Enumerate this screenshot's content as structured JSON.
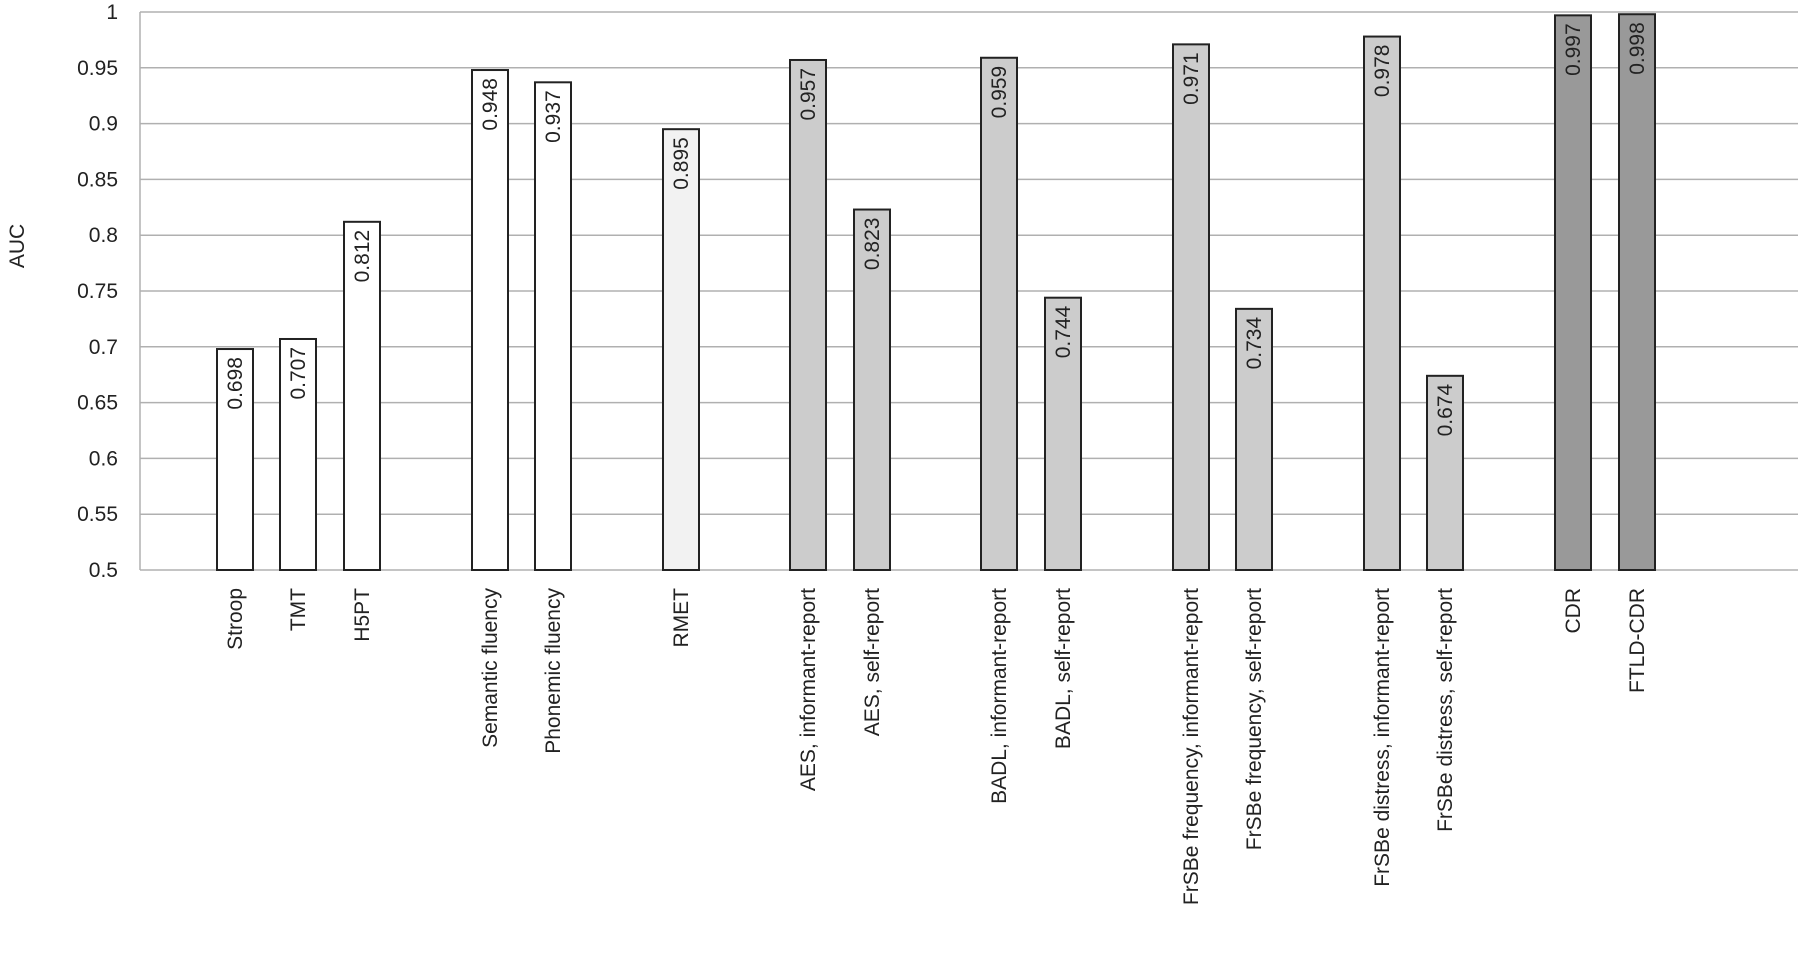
{
  "chart_data": {
    "type": "bar",
    "title": "",
    "xlabel": "",
    "ylabel": "AUC",
    "ylim": [
      0.5,
      1
    ],
    "yticks": [
      0.5,
      0.55,
      0.6,
      0.65,
      0.7,
      0.75,
      0.8,
      0.85,
      0.9,
      0.95,
      1
    ],
    "ytick_labels": [
      "0.5",
      "0.55",
      "0.6",
      "0.65",
      "0.7",
      "0.75",
      "0.8",
      "0.85",
      "0.9",
      "0.95",
      "1"
    ],
    "grid": true,
    "legend": "none",
    "categories": [
      "Stroop",
      "TMT",
      "H5PT",
      "Semantic fluency",
      "Phonemic fluency",
      "RMET",
      "AES, informant-report",
      "AES, self-report",
      "BADL, informant-report",
      "BADL, self-report",
      "FrSBe frequency, informant-report",
      "FrSBe frequency, self-report",
      "FrSBe distress, informant-report",
      "FrSBe distress, self-report",
      "CDR",
      "FTLD-CDR"
    ],
    "values": [
      0.698,
      0.707,
      0.812,
      0.948,
      0.937,
      0.895,
      0.957,
      0.823,
      0.959,
      0.744,
      0.971,
      0.734,
      0.978,
      0.674,
      0.997,
      0.998
    ],
    "value_labels": [
      "0.698",
      "0.707",
      "0.812",
      "0.948",
      "0.937",
      "0.895",
      "0.957",
      "0.823",
      "0.959",
      "0.744",
      "0.971",
      "0.734",
      "0.978",
      "0.674",
      "0.997",
      "0.998"
    ],
    "groups": [
      0,
      0,
      0,
      1,
      1,
      2,
      3,
      3,
      3,
      3,
      3,
      3,
      3,
      3,
      4,
      4
    ],
    "group_colors": [
      "#ffffff",
      "#ffffff",
      "#f2f2f2",
      "#cccccc",
      "#999999"
    ],
    "bar_edge_color": "#222222",
    "grid_color": "#b0b0b0"
  }
}
